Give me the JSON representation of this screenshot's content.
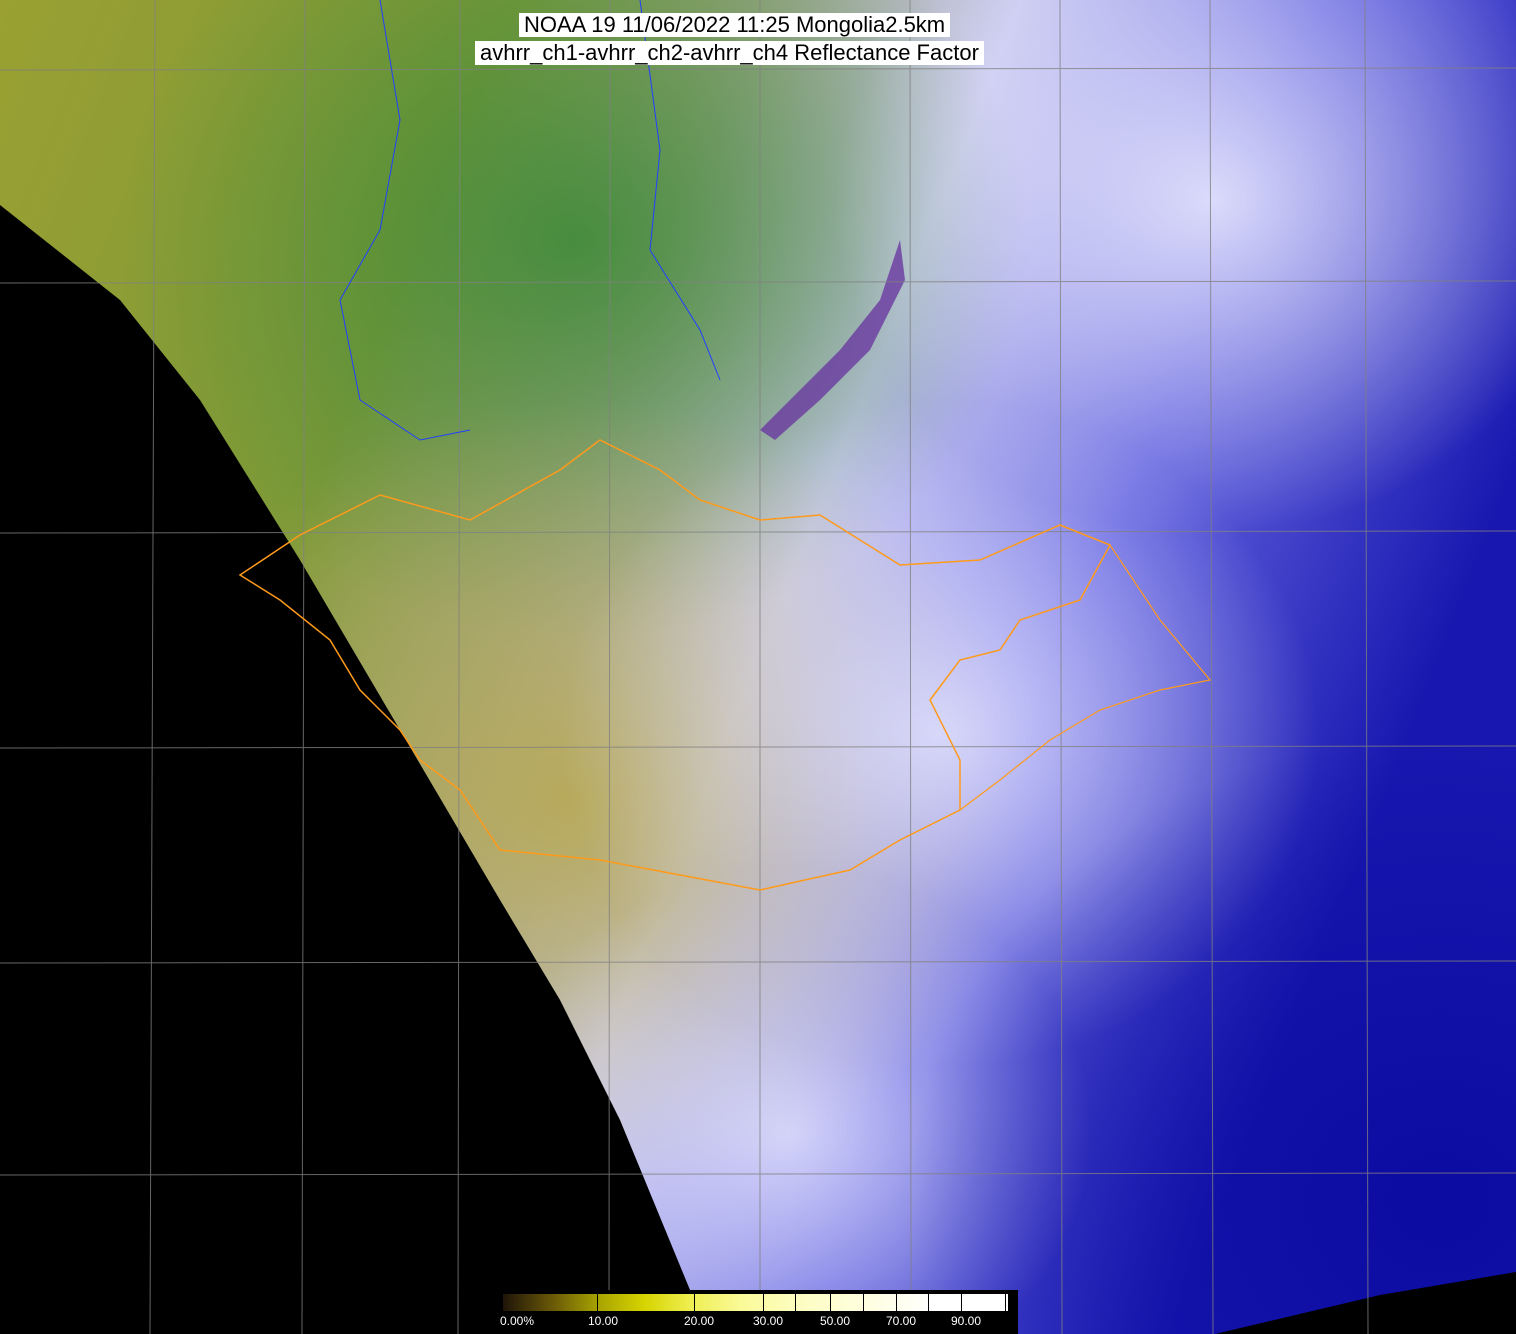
{
  "title": {
    "line1": "NOAA 19 11/06/2022 11:25 Mongolia2.5km",
    "line2": "avhrr_ch1-avhrr_ch2-avhrr_ch4 Reflectance Factor"
  },
  "colorbar": {
    "labels": [
      "0.00%",
      "10.00",
      "20.00",
      "30.00",
      "50.00",
      "70.00",
      "90.00"
    ],
    "colors": [
      "#1e1408",
      "#a8a400",
      "#d6d400",
      "#fafa98",
      "#fefee0",
      "#ffffff"
    ]
  },
  "map": {
    "border_colors": {
      "mongolia_provinces": "#ff9a1a",
      "rivers_coast": "#2040ff",
      "lakes": "#20a0a0",
      "graticule": "#808080"
    }
  }
}
